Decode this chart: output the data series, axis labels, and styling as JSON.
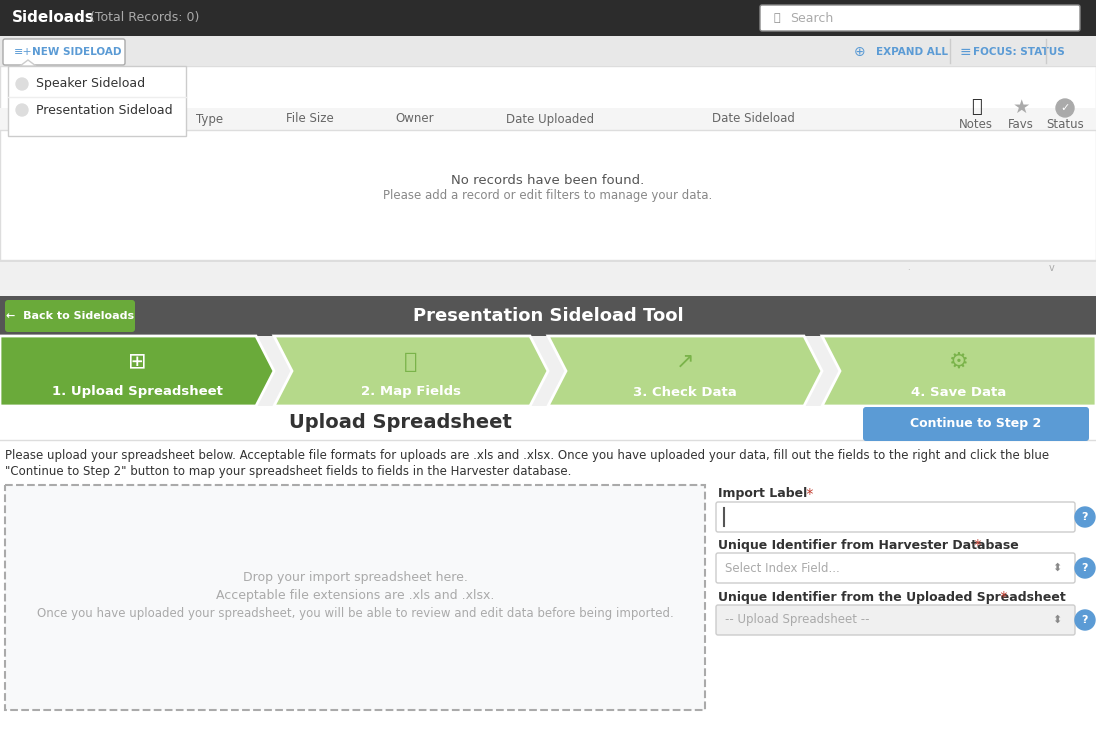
{
  "bg_color": "#f0f0f0",
  "top_bar_color": "#2c2c2c",
  "top_bar_text": "Sideloads",
  "top_bar_subtext": "(Total Records: 0)",
  "search_placeholder": "Search",
  "toolbar_bg": "#e8e8e8",
  "new_sideload_text": "NEW SIDELOAD",
  "expand_all_text": "EXPAND ALL",
  "focus_status_text": "FOCUS: STATUS",
  "dropdown_bg": "#ffffff",
  "dropdown_items": [
    "Speaker Sideload",
    "Presentation Sideload"
  ],
  "table_headers": [
    "Type",
    "File Size",
    "Owner",
    "Date Uploaded",
    "Date Sideload"
  ],
  "no_records_text": "No records have been found.",
  "no_records_sub": "Please add a record or edit filters to manage your data.",
  "dark_bar_color": "#555555",
  "back_btn_color": "#6aaa3a",
  "back_btn_text": "←  Back to Sideloads",
  "tool_title": "Presentation Sideload Tool",
  "step_active_color": "#6aaa3a",
  "step_inactive_color": "#b5d98a",
  "steps": [
    "1. Upload Spreadsheet",
    "2. Map Fields",
    "3. Check Data",
    "4. Save Data"
  ],
  "section_title": "Upload Spreadsheet",
  "continue_btn_text": "Continue to Step 2",
  "continue_btn_color": "#5b9bd5",
  "instruction_line1": "Please upload your spreadsheet below. Acceptable file formats for uploads are .xls and .xlsx. Once you have uploaded your data, fill out the fields to the right and click the blue",
  "instruction_line2": "\"Continue to Step 2\" button to map your spreadsheet fields to fields in the Harvester database.",
  "drop_line1": "Drop your import spreadsheet here.",
  "drop_line2": "Acceptable file extensions are .xls and .xlsx.",
  "drop_line3": "Once you have uploaded your spreadsheet, you will be able to review and edit data before being imported.",
  "import_label": "Import Label",
  "unique_id_harvester": "Unique Identifier from Harvester Database",
  "unique_id_spreadsheet": "Unique Identifier from the Uploaded Spreadsheet",
  "select_index_placeholder": "Select Index Field...",
  "upload_spreadsheet_placeholder": "-- Upload Spreadsheet --",
  "required_color": "#c0392b",
  "input_bg": "#f5f5f5",
  "help_btn_color": "#5b9bd5",
  "white": "#ffffff",
  "table_area_bg": "#f5f5f5",
  "white_area_bg": "#ffffff"
}
